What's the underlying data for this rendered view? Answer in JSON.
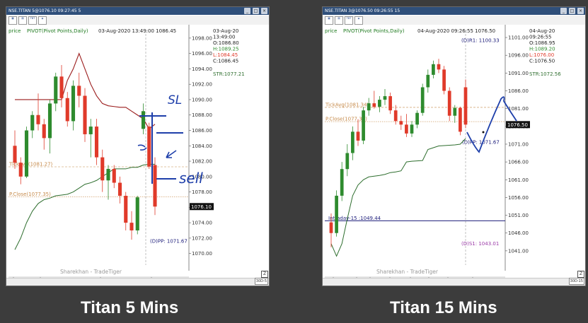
{
  "left": {
    "title": "NSE.TITAN 5@1076.10 09:27:45 5",
    "price_label": "price",
    "indicator": "PIVOT(Pivot Points,Daily)",
    "date_time": "03-Aug-2020  13:49:00  1086.45",
    "ohlc": {
      "date": "03-Aug-20",
      "time": "13:49:00",
      "o": "O:1086.80",
      "h": "H:1089.25",
      "l": "L:1084.45",
      "c": "C:1086.45"
    },
    "str": "STR:1077.21",
    "tickavg": "TickAvg(1081.27)",
    "pclose": "P.Close(1077.35)",
    "pp": "(D)PP: 1071.67",
    "last_price": "1076.10",
    "watermark": "Sharekhan - TradeTiger",
    "xticks": [
      "03:13",
      "14",
      "15",
      "04:9"
    ],
    "yticks": [
      "1098.00",
      "1096.00",
      "1094.00",
      "1092.00",
      "1090.00",
      "1088.00",
      "1086.00",
      "1084.00",
      "1082.00",
      "1080.00",
      "1078.00",
      "1076.00",
      "1074.00",
      "1072.00",
      "1070.00"
    ],
    "annotations": [
      "SL",
      "sell"
    ],
    "corner_button": "Z",
    "status_tag": "30D-5"
  },
  "right": {
    "title": "NSE.TITAN 3@1076.50 09:26:55 15",
    "price_label": "price",
    "indicator": "PIVOT(Pivot Points,Daily)",
    "date_time": "04-Aug-2020  09:26:55  1076.50",
    "ohlc": {
      "date": "04-Aug-20",
      "time": "09:26:55",
      "o": "O:1086.95",
      "h": "H:1089.20",
      "l": "L:1076.00",
      "c": "C:1076.50"
    },
    "str": "STR:1072.56",
    "r1": "(D)R1: 1100.33",
    "tickavg": "TickAvg(1081.34)",
    "pclose": "P.Close(1077.35)",
    "pp": "(D)PP: 1071.67",
    "s1": "(D)S1: 1043.01",
    "intraday": "Intraday-15 :1049.44",
    "last_price": "1076.50",
    "watermark": "Sharekhan - TradeTiger",
    "xticks": [
      "31:15",
      "20",
      "11",
      "12",
      "13",
      "14",
      "15",
      "04:9"
    ],
    "yticks": [
      "1101.00",
      "1096.00",
      "1091.00",
      "1086.00",
      "1081.00",
      "1076.00",
      "1071.00",
      "1066.00",
      "1061.00",
      "1056.00",
      "1051.00",
      "1046.00",
      "1041.00"
    ],
    "corner_button": "Z",
    "status_tag": "30D-15"
  },
  "captions": {
    "left": "Titan 5 Mins",
    "right": "Titan 15 Mins"
  },
  "colors": {
    "up": "#2e8b2e",
    "down": "#e03a2a",
    "pivot_line": "#9b1c1c",
    "str_line": "#2e6e2e",
    "tickavg_line": "#c68a4a",
    "pclose_line": "#c68a4a",
    "ink": "#1e3faa",
    "intraday_line": "#1c1c7a"
  },
  "chart_data": [
    {
      "type": "candlestick",
      "title": "",
      "xlabel": "",
      "ylabel": "",
      "xticks": [
        "03:13",
        "14",
        "15",
        "04:9"
      ],
      "ylim": [
        1068.5,
        1099
      ],
      "candles": [
        {
          "o": 1084,
          "h": 1086,
          "l": 1081,
          "c": 1081.8
        },
        {
          "o": 1081.8,
          "h": 1082.5,
          "l": 1079,
          "c": 1080
        },
        {
          "o": 1080,
          "h": 1086.5,
          "l": 1079.8,
          "c": 1086
        },
        {
          "o": 1086,
          "h": 1088.5,
          "l": 1085,
          "c": 1088
        },
        {
          "o": 1088,
          "h": 1090.8,
          "l": 1086,
          "c": 1086.8
        },
        {
          "o": 1086.8,
          "h": 1087.5,
          "l": 1083.5,
          "c": 1085
        },
        {
          "o": 1085,
          "h": 1090,
          "l": 1083,
          "c": 1089.5
        },
        {
          "o": 1089.5,
          "h": 1093.5,
          "l": 1088.5,
          "c": 1093
        },
        {
          "o": 1093,
          "h": 1094.5,
          "l": 1089,
          "c": 1090.2
        },
        {
          "o": 1090.2,
          "h": 1091,
          "l": 1086.5,
          "c": 1087.2
        },
        {
          "o": 1087.2,
          "h": 1092.5,
          "l": 1086,
          "c": 1091.8
        },
        {
          "o": 1091.8,
          "h": 1093.5,
          "l": 1089,
          "c": 1090.5
        },
        {
          "o": 1090.5,
          "h": 1091.5,
          "l": 1084.5,
          "c": 1085.5
        },
        {
          "o": 1085.5,
          "h": 1087.5,
          "l": 1082.5,
          "c": 1086.5
        },
        {
          "o": 1086.5,
          "h": 1087.5,
          "l": 1081.5,
          "c": 1082.5
        },
        {
          "o": 1082.5,
          "h": 1083.5,
          "l": 1078,
          "c": 1079.5
        },
        {
          "o": 1079.5,
          "h": 1081.5,
          "l": 1077,
          "c": 1081
        },
        {
          "o": 1081,
          "h": 1081.5,
          "l": 1078.5,
          "c": 1079.2
        },
        {
          "o": 1079.2,
          "h": 1080,
          "l": 1076.5,
          "c": 1077.5
        },
        {
          "o": 1077.5,
          "h": 1078,
          "l": 1073,
          "c": 1074
        },
        {
          "o": 1074,
          "h": 1075.5,
          "l": 1071.8,
          "c": 1073
        },
        {
          "o": 1073,
          "h": 1077.5,
          "l": 1072.5,
          "c": 1077.3
        },
        {
          "o": 1086.2,
          "h": 1089.5,
          "l": 1085.5,
          "c": 1088.5
        },
        {
          "o": 1086.5,
          "h": 1087,
          "l": 1081,
          "c": 1081.3
        },
        {
          "o": 1081.5,
          "h": 1082.5,
          "l": 1075,
          "c": 1076.1
        }
      ],
      "pivot_line": [
        1090,
        1090,
        1090,
        1090,
        1090,
        1090,
        1090,
        1090,
        1090,
        1092.5,
        1094,
        1096,
        1094,
        1092,
        1090.5,
        1089.5,
        1089.2,
        1089.1,
        1089,
        1089,
        1088.5,
        1088,
        1087.5,
        1086.2,
        1086.8
      ],
      "str_line": [
        1070.5,
        1072,
        1074,
        1075.5,
        1076.5,
        1077,
        1077.2,
        1077.5,
        1077.6,
        1077.7,
        1078,
        1078.5,
        1079,
        1079.2,
        1079.5,
        1080,
        1080.5,
        1081,
        1081,
        1081,
        1081.2,
        1081.2,
        1081.5,
        1081.6,
        1081.6
      ],
      "levels": {
        "tickavg": 1081.27,
        "pclose": 1077.35,
        "pp": 1071.67,
        "last": 1076.1
      }
    },
    {
      "type": "candlestick",
      "title": "",
      "xlabel": "",
      "ylabel": "",
      "xticks": [
        "31:15",
        "20",
        "11",
        "12",
        "13",
        "14",
        "15",
        "04:9"
      ],
      "ylim": [
        1037,
        1103
      ],
      "candles": [
        {
          "o": 1049,
          "h": 1051.5,
          "l": 1042,
          "c": 1046
        },
        {
          "o": 1046,
          "h": 1058,
          "l": 1045,
          "c": 1056.5
        },
        {
          "o": 1056.5,
          "h": 1066,
          "l": 1055,
          "c": 1064
        },
        {
          "o": 1064,
          "h": 1071,
          "l": 1062,
          "c": 1068.5
        },
        {
          "o": 1068.5,
          "h": 1076,
          "l": 1066.5,
          "c": 1074.5
        },
        {
          "o": 1074.5,
          "h": 1078,
          "l": 1070.5,
          "c": 1072
        },
        {
          "o": 1072,
          "h": 1081.5,
          "l": 1071,
          "c": 1080.5
        },
        {
          "o": 1080.5,
          "h": 1084,
          "l": 1079,
          "c": 1082.5
        },
        {
          "o": 1082.5,
          "h": 1086,
          "l": 1081,
          "c": 1081.5
        },
        {
          "o": 1081.5,
          "h": 1084.5,
          "l": 1080,
          "c": 1083.5
        },
        {
          "o": 1083.5,
          "h": 1086.5,
          "l": 1082,
          "c": 1084.5
        },
        {
          "o": 1084.5,
          "h": 1085.5,
          "l": 1079.5,
          "c": 1080.5
        },
        {
          "o": 1080.5,
          "h": 1082,
          "l": 1076.5,
          "c": 1077.5
        },
        {
          "o": 1077.5,
          "h": 1079,
          "l": 1075,
          "c": 1076.5
        },
        {
          "o": 1076.5,
          "h": 1079.5,
          "l": 1073,
          "c": 1074
        },
        {
          "o": 1074,
          "h": 1077.5,
          "l": 1073,
          "c": 1076.5
        },
        {
          "o": 1076.5,
          "h": 1080.5,
          "l": 1075.5,
          "c": 1079.8
        },
        {
          "o": 1079.8,
          "h": 1088,
          "l": 1079,
          "c": 1087
        },
        {
          "o": 1087,
          "h": 1092,
          "l": 1085.5,
          "c": 1090.5
        },
        {
          "o": 1090.5,
          "h": 1094.5,
          "l": 1089.5,
          "c": 1093.5
        },
        {
          "o": 1093.5,
          "h": 1095,
          "l": 1091,
          "c": 1092
        },
        {
          "o": 1092,
          "h": 1093,
          "l": 1085,
          "c": 1086
        },
        {
          "o": 1086,
          "h": 1087,
          "l": 1077.5,
          "c": 1079
        },
        {
          "o": 1079,
          "h": 1082,
          "l": 1077,
          "c": 1081.2
        },
        {
          "o": 1081.2,
          "h": 1081.5,
          "l": 1073.5,
          "c": 1074.5
        },
        {
          "o": 1087,
          "h": 1089.2,
          "l": 1075.5,
          "c": 1076.5
        }
      ],
      "str_line": [
        1043,
        1039.5,
        1043,
        1050,
        1056.5,
        1059.5,
        1061,
        1061.8,
        1062,
        1062.2,
        1062.5,
        1063,
        1063.2,
        1063.5,
        1066,
        1066.2,
        1066.3,
        1066.4,
        1069.5,
        1070,
        1070.5,
        1070.6,
        1070.7,
        1070.8,
        1071,
        1072.56
      ],
      "levels": {
        "tickavg": 1081.34,
        "pclose": 1077.35,
        "pp": 1071.67,
        "r1": 1100.33,
        "s1": 1043.01,
        "intraday": 1049.44,
        "last": 1076.5
      }
    }
  ]
}
